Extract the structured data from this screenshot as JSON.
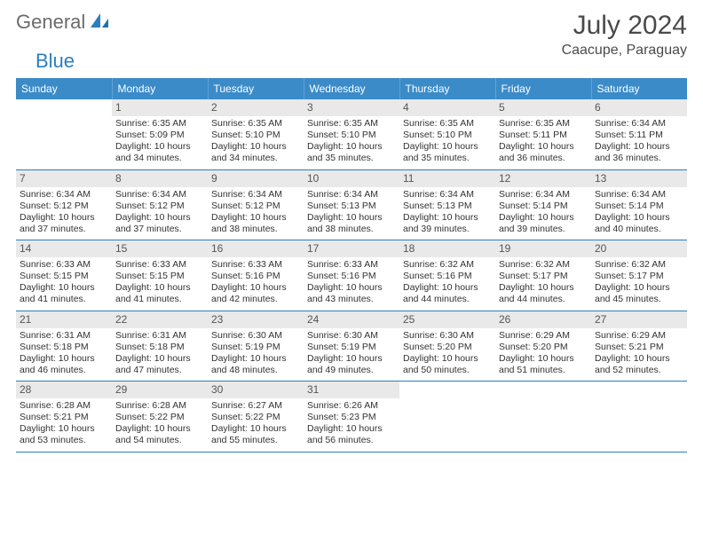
{
  "logo": {
    "word1": "General",
    "word2": "Blue"
  },
  "title": "July 2024",
  "location": "Caacupe, Paraguay",
  "colors": {
    "header_bg": "#3b8bc8",
    "header_text": "#ffffff",
    "daynum_bg": "#e9e9e9",
    "border": "#2a7fbf",
    "logo_gray": "#6b6b6b",
    "logo_blue": "#2a7fbf"
  },
  "dow": [
    "Sunday",
    "Monday",
    "Tuesday",
    "Wednesday",
    "Thursday",
    "Friday",
    "Saturday"
  ],
  "weeks": [
    [
      {
        "n": "",
        "t": ""
      },
      {
        "n": "1",
        "t": "Sunrise: 6:35 AM\nSunset: 5:09 PM\nDaylight: 10 hours and 34 minutes."
      },
      {
        "n": "2",
        "t": "Sunrise: 6:35 AM\nSunset: 5:10 PM\nDaylight: 10 hours and 34 minutes."
      },
      {
        "n": "3",
        "t": "Sunrise: 6:35 AM\nSunset: 5:10 PM\nDaylight: 10 hours and 35 minutes."
      },
      {
        "n": "4",
        "t": "Sunrise: 6:35 AM\nSunset: 5:10 PM\nDaylight: 10 hours and 35 minutes."
      },
      {
        "n": "5",
        "t": "Sunrise: 6:35 AM\nSunset: 5:11 PM\nDaylight: 10 hours and 36 minutes."
      },
      {
        "n": "6",
        "t": "Sunrise: 6:34 AM\nSunset: 5:11 PM\nDaylight: 10 hours and 36 minutes."
      }
    ],
    [
      {
        "n": "7",
        "t": "Sunrise: 6:34 AM\nSunset: 5:12 PM\nDaylight: 10 hours and 37 minutes."
      },
      {
        "n": "8",
        "t": "Sunrise: 6:34 AM\nSunset: 5:12 PM\nDaylight: 10 hours and 37 minutes."
      },
      {
        "n": "9",
        "t": "Sunrise: 6:34 AM\nSunset: 5:12 PM\nDaylight: 10 hours and 38 minutes."
      },
      {
        "n": "10",
        "t": "Sunrise: 6:34 AM\nSunset: 5:13 PM\nDaylight: 10 hours and 38 minutes."
      },
      {
        "n": "11",
        "t": "Sunrise: 6:34 AM\nSunset: 5:13 PM\nDaylight: 10 hours and 39 minutes."
      },
      {
        "n": "12",
        "t": "Sunrise: 6:34 AM\nSunset: 5:14 PM\nDaylight: 10 hours and 39 minutes."
      },
      {
        "n": "13",
        "t": "Sunrise: 6:34 AM\nSunset: 5:14 PM\nDaylight: 10 hours and 40 minutes."
      }
    ],
    [
      {
        "n": "14",
        "t": "Sunrise: 6:33 AM\nSunset: 5:15 PM\nDaylight: 10 hours and 41 minutes."
      },
      {
        "n": "15",
        "t": "Sunrise: 6:33 AM\nSunset: 5:15 PM\nDaylight: 10 hours and 41 minutes."
      },
      {
        "n": "16",
        "t": "Sunrise: 6:33 AM\nSunset: 5:16 PM\nDaylight: 10 hours and 42 minutes."
      },
      {
        "n": "17",
        "t": "Sunrise: 6:33 AM\nSunset: 5:16 PM\nDaylight: 10 hours and 43 minutes."
      },
      {
        "n": "18",
        "t": "Sunrise: 6:32 AM\nSunset: 5:16 PM\nDaylight: 10 hours and 44 minutes."
      },
      {
        "n": "19",
        "t": "Sunrise: 6:32 AM\nSunset: 5:17 PM\nDaylight: 10 hours and 44 minutes."
      },
      {
        "n": "20",
        "t": "Sunrise: 6:32 AM\nSunset: 5:17 PM\nDaylight: 10 hours and 45 minutes."
      }
    ],
    [
      {
        "n": "21",
        "t": "Sunrise: 6:31 AM\nSunset: 5:18 PM\nDaylight: 10 hours and 46 minutes."
      },
      {
        "n": "22",
        "t": "Sunrise: 6:31 AM\nSunset: 5:18 PM\nDaylight: 10 hours and 47 minutes."
      },
      {
        "n": "23",
        "t": "Sunrise: 6:30 AM\nSunset: 5:19 PM\nDaylight: 10 hours and 48 minutes."
      },
      {
        "n": "24",
        "t": "Sunrise: 6:30 AM\nSunset: 5:19 PM\nDaylight: 10 hours and 49 minutes."
      },
      {
        "n": "25",
        "t": "Sunrise: 6:30 AM\nSunset: 5:20 PM\nDaylight: 10 hours and 50 minutes."
      },
      {
        "n": "26",
        "t": "Sunrise: 6:29 AM\nSunset: 5:20 PM\nDaylight: 10 hours and 51 minutes."
      },
      {
        "n": "27",
        "t": "Sunrise: 6:29 AM\nSunset: 5:21 PM\nDaylight: 10 hours and 52 minutes."
      }
    ],
    [
      {
        "n": "28",
        "t": "Sunrise: 6:28 AM\nSunset: 5:21 PM\nDaylight: 10 hours and 53 minutes."
      },
      {
        "n": "29",
        "t": "Sunrise: 6:28 AM\nSunset: 5:22 PM\nDaylight: 10 hours and 54 minutes."
      },
      {
        "n": "30",
        "t": "Sunrise: 6:27 AM\nSunset: 5:22 PM\nDaylight: 10 hours and 55 minutes."
      },
      {
        "n": "31",
        "t": "Sunrise: 6:26 AM\nSunset: 5:23 PM\nDaylight: 10 hours and 56 minutes."
      },
      {
        "n": "",
        "t": ""
      },
      {
        "n": "",
        "t": ""
      },
      {
        "n": "",
        "t": ""
      }
    ]
  ]
}
